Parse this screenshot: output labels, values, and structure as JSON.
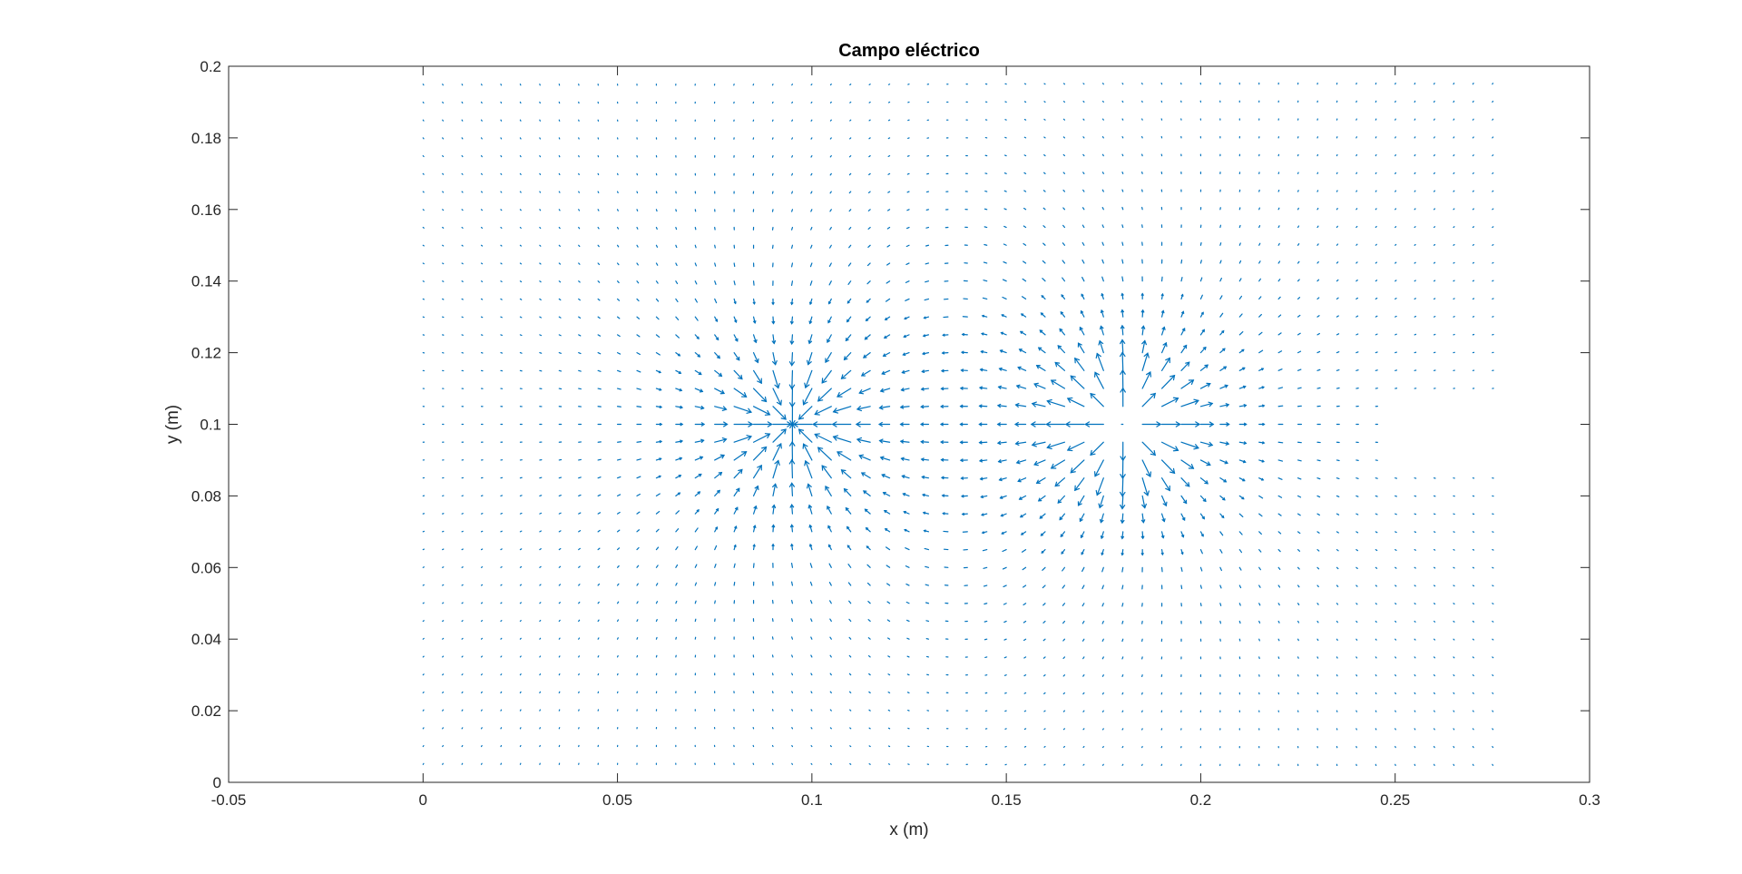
{
  "chart_data": {
    "type": "quiver",
    "title": "Campo eléctrico",
    "xlabel": "x (m)",
    "ylabel": "y (m)",
    "xlim": [
      -0.05,
      0.3
    ],
    "ylim": [
      0,
      0.2
    ],
    "xticks": [
      -0.05,
      0,
      0.05,
      0.1,
      0.15,
      0.2,
      0.25,
      0.3
    ],
    "xtick_labels": [
      "-0.05",
      "0",
      "0.05",
      "0.1",
      "0.15",
      "0.2",
      "0.25",
      "0.3"
    ],
    "yticks": [
      0,
      0.02,
      0.04,
      0.06,
      0.08,
      0.1,
      0.12,
      0.14,
      0.16,
      0.18,
      0.2
    ],
    "ytick_labels": [
      "0",
      "0.02",
      "0.04",
      "0.06",
      "0.08",
      "0.1",
      "0.12",
      "0.14",
      "0.16",
      "0.18",
      "0.2"
    ],
    "grid": false,
    "box": true,
    "arrow_color": "#0072bd",
    "axis_color": "#262626",
    "field": {
      "x_range": [
        0,
        0.275
      ],
      "y_range": [
        0.005,
        0.195
      ],
      "spacing": 0.005,
      "excluded_region": {
        "x": [
          0.25,
          0.275
        ],
        "y": [
          0.085,
          0.11
        ]
      },
      "charges": [
        {
          "x": 0.095,
          "y": 0.1,
          "q": -1
        },
        {
          "x": 0.18,
          "y": 0.1,
          "q": 1
        }
      ]
    }
  }
}
